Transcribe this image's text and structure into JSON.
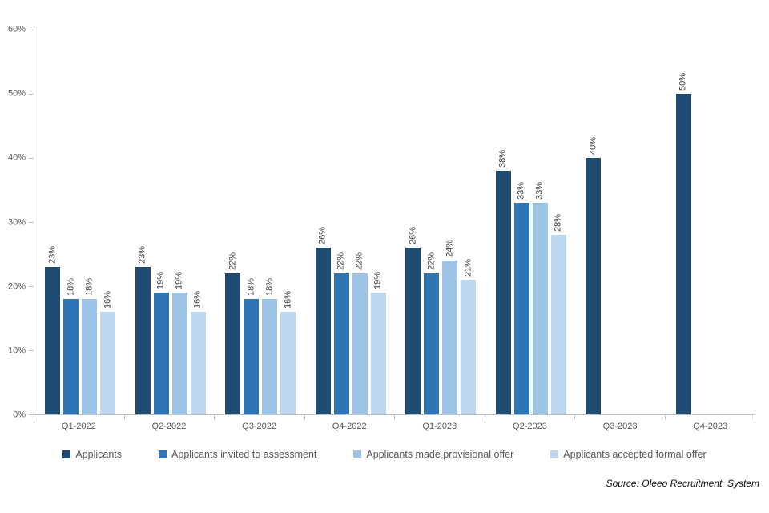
{
  "chart_data": {
    "type": "bar",
    "title": "",
    "categories": [
      "Q1-2022",
      "Q2-2022",
      "Q3-2022",
      "Q4-2022",
      "Q1-2023",
      "Q2-2023",
      "Q3-2023",
      "Q4-2023"
    ],
    "series": [
      {
        "name": "Applicants",
        "color": "#204C74",
        "values": [
          23,
          23,
          22,
          26,
          26,
          38,
          40,
          50
        ]
      },
      {
        "name": "Applicants invited to assessment",
        "color": "#2E75B6",
        "values": [
          18,
          19,
          18,
          22,
          22,
          33,
          null,
          null
        ]
      },
      {
        "name": "Applicants made provisional offer",
        "color": "#9DC3E6",
        "values": [
          18,
          19,
          18,
          22,
          24,
          33,
          null,
          null
        ]
      },
      {
        "name": "Applicants accepted formal offer",
        "color": "#BDD7EE",
        "values": [
          16,
          16,
          16,
          19,
          21,
          28,
          null,
          null
        ]
      }
    ],
    "y_axis": {
      "min": 0,
      "max": 60,
      "step": 10,
      "tick_labels": [
        "0%",
        "10%",
        "20%",
        "30%",
        "40%",
        "50%",
        "60%"
      ]
    },
    "data_label_suffix": "%",
    "legend_position": "bottom",
    "grid": false,
    "axis_color": "#BFBFBF",
    "tick_label_color": "#595959",
    "data_label_color": "#404040"
  },
  "source_note": "Source: Oleeo Recruitment  System"
}
